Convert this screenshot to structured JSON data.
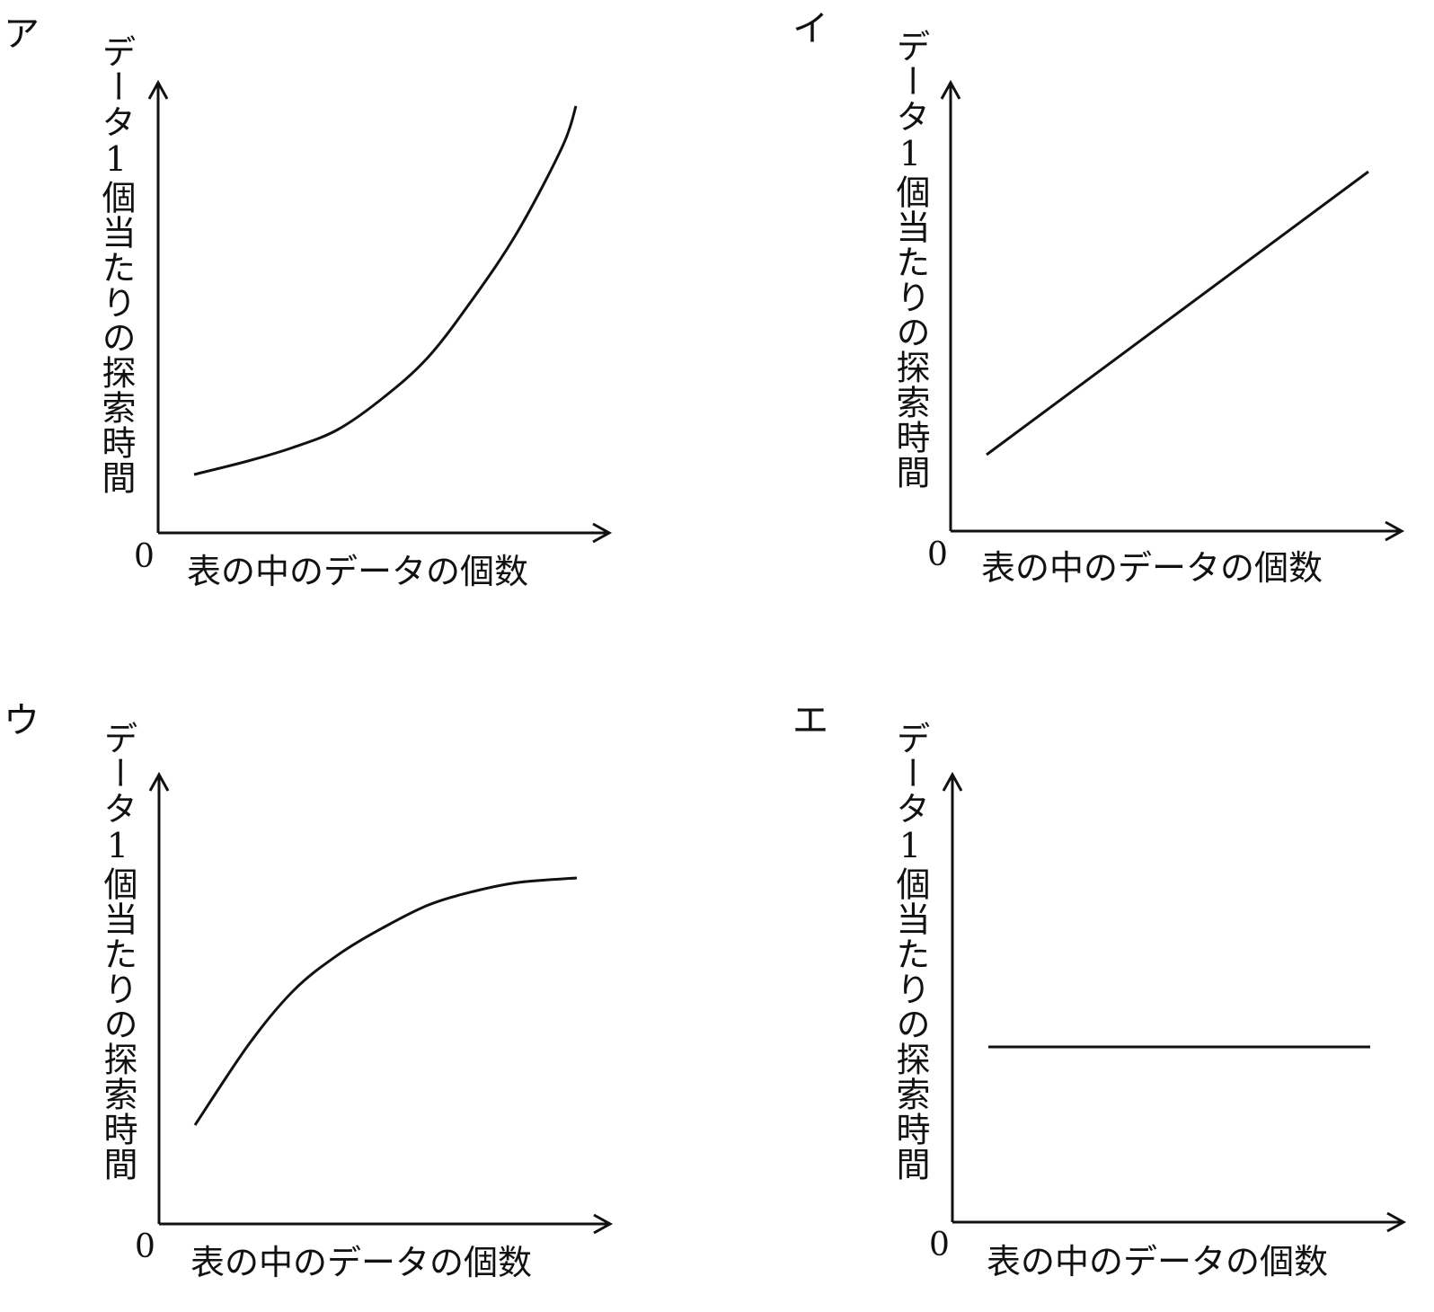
{
  "chart_data": [
    {
      "type": "line",
      "panel_label": "ア",
      "ylabel": "データ1個当たりの探索時間",
      "xlabel": "表の中のデータの個数",
      "origin_label": "0",
      "curve_shape": "increasing, convex (accelerating growth)",
      "xlim": [
        0,
        1
      ],
      "ylim": [
        0,
        1
      ],
      "series": [
        {
          "x": [
            0.08,
            0.2,
            0.3,
            0.4,
            0.5,
            0.6,
            0.7,
            0.8,
            0.9,
            0.93
          ],
          "y": [
            0.13,
            0.16,
            0.19,
            0.23,
            0.3,
            0.39,
            0.52,
            0.67,
            0.86,
            0.95
          ]
        }
      ]
    },
    {
      "type": "line",
      "panel_label": "イ",
      "ylabel": "データ1個当たりの探索時間",
      "xlabel": "表の中のデータの個数",
      "origin_label": "0",
      "curve_shape": "increasing, linear",
      "xlim": [
        0,
        1
      ],
      "ylim": [
        0,
        1
      ],
      "series": [
        {
          "x": [
            0.08,
            0.93
          ],
          "y": [
            0.17,
            0.8
          ]
        }
      ]
    },
    {
      "type": "line",
      "panel_label": "ウ",
      "ylabel": "データ1個当たりの探索時間",
      "xlabel": "表の中のデータの個数",
      "origin_label": "0",
      "curve_shape": "increasing, concave (saturating)",
      "xlim": [
        0,
        1
      ],
      "ylim": [
        0,
        1
      ],
      "series": [
        {
          "x": [
            0.08,
            0.2,
            0.3,
            0.4,
            0.5,
            0.6,
            0.7,
            0.8,
            0.93
          ],
          "y": [
            0.22,
            0.4,
            0.52,
            0.6,
            0.66,
            0.71,
            0.74,
            0.76,
            0.77
          ]
        }
      ]
    },
    {
      "type": "line",
      "panel_label": "エ",
      "ylabel": "データ1個当たりの探索時間",
      "xlabel": "表の中のデータの個数",
      "origin_label": "0",
      "curve_shape": "constant",
      "xlim": [
        0,
        1
      ],
      "ylim": [
        0,
        1
      ],
      "series": [
        {
          "x": [
            0.08,
            0.93
          ],
          "y": [
            0.39,
            0.39
          ]
        }
      ]
    }
  ]
}
